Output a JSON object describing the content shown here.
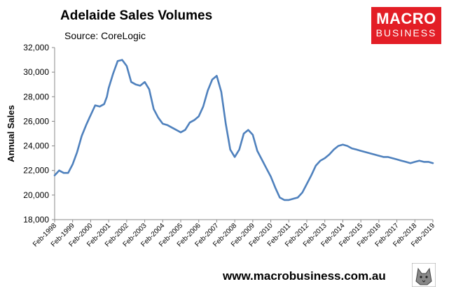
{
  "header": {
    "title": "Adelaide Sales Volumes",
    "subtitle": "Source: CoreLogic"
  },
  "logo": {
    "line1": "MACRO",
    "line2": "BUSINESS",
    "color": "#e31e26"
  },
  "footer": {
    "url": "www.macrobusiness.com.au",
    "icon": "wolf-icon"
  },
  "chart_data": {
    "type": "line",
    "title": "Adelaide Sales Volumes",
    "ylabel": "Annual Sales",
    "xlabel": "",
    "ylim": [
      18000,
      32000
    ],
    "yticks": [
      "18,000",
      "20,000",
      "22,000",
      "24,000",
      "26,000",
      "28,000",
      "30,000",
      "32,000"
    ],
    "yticks_values": [
      18000,
      20000,
      22000,
      24000,
      26000,
      28000,
      30000,
      32000
    ],
    "xticks": [
      "Feb-1998",
      "Feb-1999",
      "Feb-2000",
      "Feb-2001",
      "Feb-2002",
      "Feb-2003",
      "Feb-2004",
      "Feb-2005",
      "Feb-2006",
      "Feb-2007",
      "Feb-2008",
      "Feb-2009",
      "Feb-2010",
      "Feb-2011",
      "Feb-2012",
      "Feb-2013",
      "Feb-2014",
      "Feb-2015",
      "Feb-2016",
      "Feb-2017",
      "Feb-2018",
      "Feb-2019"
    ],
    "xlim": [
      1998.0,
      2019.0
    ],
    "grid": false,
    "legend": "none",
    "line_color": "#4f81bd",
    "series": [
      {
        "x": [
          1998.0,
          1998.25,
          1998.5,
          1998.75,
          1999.0,
          1999.25,
          1999.5,
          1999.75,
          2000.0,
          2000.25,
          2000.5,
          2000.75,
          2000.9,
          2001.0,
          2001.25,
          2001.5,
          2001.75,
          2002.0,
          2002.25,
          2002.5,
          2002.75,
          2003.0,
          2003.25,
          2003.5,
          2003.75,
          2004.0,
          2004.25,
          2004.5,
          2004.75,
          2005.0,
          2005.25,
          2005.5,
          2005.75,
          2006.0,
          2006.25,
          2006.5,
          2006.75,
          2007.0,
          2007.25,
          2007.5,
          2007.75,
          2008.0,
          2008.25,
          2008.5,
          2008.75,
          2009.0,
          2009.25,
          2009.5,
          2009.75,
          2010.0,
          2010.25,
          2010.5,
          2010.75,
          2011.0,
          2011.25,
          2011.5,
          2011.75,
          2012.0,
          2012.25,
          2012.5,
          2012.75,
          2013.0,
          2013.25,
          2013.5,
          2013.75,
          2014.0,
          2014.25,
          2014.5,
          2014.75,
          2015.0,
          2015.25,
          2015.5,
          2015.75,
          2016.0,
          2016.25,
          2016.5,
          2016.75,
          2017.0,
          2017.25,
          2017.5,
          2017.75,
          2018.0,
          2018.25,
          2018.5,
          2018.75,
          2019.0
        ],
        "y": [
          21600,
          22000,
          21800,
          21800,
          22500,
          23500,
          24800,
          25700,
          26500,
          27300,
          27200,
          27400,
          28000,
          28700,
          29900,
          30900,
          31000,
          30500,
          29200,
          29000,
          28900,
          29200,
          28600,
          27000,
          26300,
          25800,
          25700,
          25500,
          25300,
          25100,
          25300,
          25900,
          26100,
          26400,
          27200,
          28500,
          29400,
          29700,
          28400,
          25800,
          23700,
          23100,
          23700,
          25000,
          25300,
          24900,
          23600,
          22900,
          22200,
          21500,
          20600,
          19800,
          19600,
          19600,
          19700,
          19800,
          20200,
          20900,
          21600,
          22400,
          22800,
          23000,
          23300,
          23700,
          24000,
          24100,
          24000,
          23800,
          23700,
          23600,
          23500,
          23400,
          23300,
          23200,
          23100,
          23100,
          23000,
          22900,
          22800,
          22700,
          22600,
          22700,
          22800,
          22700,
          22700,
          22600
        ]
      }
    ]
  }
}
